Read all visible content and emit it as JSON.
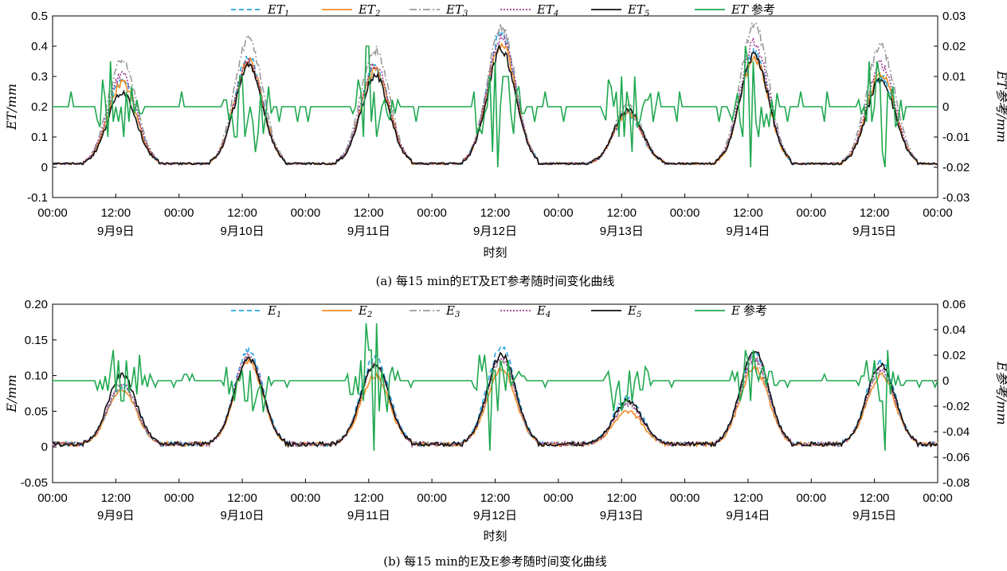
{
  "chart_data": [
    {
      "type": "line",
      "caption": "(a) 每15 min的ET及ET参考随时间变化曲线",
      "ylabel_left": "ET/mm",
      "ylabel_right": "ET参考/mm",
      "xlabel": "时刻",
      "x_ticks": [
        "00:00",
        "12:00",
        "00:00",
        "12:00",
        "00:00",
        "12:00",
        "00:00",
        "12:00",
        "00:00",
        "12:00",
        "00:00",
        "12:00",
        "00:00",
        "12:00",
        "00:00"
      ],
      "date_labels": [
        "9月9日",
        "9月10日",
        "9月11日",
        "9月12日",
        "9月13日",
        "9月14日",
        "9月15日"
      ],
      "ylim_left": [
        -0.1,
        0.5
      ],
      "yticks_left": [
        "-0.1",
        "0",
        "0.1",
        "0.2",
        "0.3",
        "0.4",
        "0.5"
      ],
      "ylim_right": [
        -0.03,
        0.03
      ],
      "yticks_right": [
        "-0.03",
        "-0.02",
        "-0.01",
        "0",
        "0.01",
        "0.02",
        "0.03"
      ],
      "x_range_hours": [
        0,
        168
      ],
      "legend_position": "top",
      "series": [
        {
          "name": "ET1",
          "label_main": "ET",
          "label_sub": "1",
          "axis": "left",
          "color": "#29a3e0",
          "dash": "6,4",
          "daily_peaks": [
            0.29,
            0.36,
            0.33,
            0.44,
            0.17,
            0.38,
            0.3
          ]
        },
        {
          "name": "ET2",
          "label_main": "ET",
          "label_sub": "2",
          "axis": "left",
          "color": "#f28c28",
          "dash": "",
          "daily_peaks": [
            0.28,
            0.35,
            0.32,
            0.41,
            0.18,
            0.36,
            0.31
          ]
        },
        {
          "name": "ET3",
          "label_main": "ET",
          "label_sub": "3",
          "axis": "left",
          "color": "#9a9a9a",
          "dash": "9,3,2,3",
          "daily_peaks": [
            0.35,
            0.42,
            0.39,
            0.46,
            0.2,
            0.47,
            0.4
          ]
        },
        {
          "name": "ET4",
          "label_main": "ET",
          "label_sub": "4",
          "axis": "left",
          "color": "#9b3a8e",
          "dash": "2,2",
          "daily_peaks": [
            0.31,
            0.35,
            0.34,
            0.43,
            0.18,
            0.41,
            0.34
          ]
        },
        {
          "name": "ET5",
          "label_main": "ET",
          "label_sub": "5",
          "axis": "left",
          "color": "#111111",
          "dash": "",
          "daily_peaks": [
            0.25,
            0.33,
            0.3,
            0.39,
            0.19,
            0.37,
            0.29
          ]
        },
        {
          "name": "ET参考",
          "label_main": "ET",
          "label_sub": "",
          "label_tail": "参考",
          "axis": "right",
          "color": "#1fa84f",
          "dash": "",
          "baseline": 0.0,
          "spike_max": 0.02,
          "spike_min": -0.02
        }
      ]
    },
    {
      "type": "line",
      "caption": "(b) 每15 min的E及E参考随时间变化曲线",
      "ylabel_left": "E/mm",
      "ylabel_right": "E参考/mm",
      "xlabel": "时刻",
      "x_ticks": [
        "00:00",
        "12:00",
        "00:00",
        "12:00",
        "00:00",
        "12:00",
        "00:00",
        "12:00",
        "00:00",
        "12:00",
        "00:00",
        "12:00",
        "00:00",
        "12:00",
        "00:00"
      ],
      "date_labels": [
        "9月9日",
        "9月10日",
        "9月11日",
        "9月12日",
        "9月13日",
        "9月14日",
        "9月15日"
      ],
      "ylim_left": [
        -0.05,
        0.2
      ],
      "yticks_left": [
        "-0.05",
        "0",
        "0.05",
        "0.10",
        "0.15",
        "0.20"
      ],
      "ylim_right": [
        -0.08,
        0.06
      ],
      "yticks_right": [
        "-0.08",
        "-0.06",
        "-0.04",
        "-0.02",
        "0",
        "0.02",
        "0.04",
        "0.06"
      ],
      "x_range_hours": [
        0,
        168
      ],
      "legend_position": "top",
      "series": [
        {
          "name": "E1",
          "label_main": "E",
          "label_sub": "1",
          "axis": "left",
          "color": "#29a3e0",
          "dash": "6,4",
          "daily_peaks": [
            0.085,
            0.135,
            0.125,
            0.14,
            0.07,
            0.13,
            0.12
          ]
        },
        {
          "name": "E2",
          "label_main": "E",
          "label_sub": "2",
          "axis": "left",
          "color": "#f28c28",
          "dash": "",
          "daily_peaks": [
            0.08,
            0.12,
            0.1,
            0.11,
            0.05,
            0.11,
            0.1
          ]
        },
        {
          "name": "E3",
          "label_main": "E",
          "label_sub": "3",
          "axis": "left",
          "color": "#9a9a9a",
          "dash": "9,3,2,3",
          "daily_peaks": [
            0.085,
            0.125,
            0.115,
            0.12,
            0.06,
            0.12,
            0.105
          ]
        },
        {
          "name": "E4",
          "label_main": "E",
          "label_sub": "4",
          "axis": "left",
          "color": "#9b3a8e",
          "dash": "2,2",
          "daily_peaks": [
            0.09,
            0.13,
            0.115,
            0.125,
            0.06,
            0.125,
            0.11
          ]
        },
        {
          "name": "E5",
          "label_main": "E",
          "label_sub": "5",
          "axis": "left",
          "color": "#111111",
          "dash": "",
          "daily_peaks": [
            0.1,
            0.125,
            0.115,
            0.13,
            0.065,
            0.135,
            0.115
          ]
        },
        {
          "name": "E参考",
          "label_main": "E",
          "label_sub": "",
          "label_tail": "参考",
          "axis": "right",
          "color": "#1fa84f",
          "dash": "",
          "baseline": 0.0,
          "spike_max": 0.045,
          "spike_min": -0.055
        }
      ]
    }
  ]
}
